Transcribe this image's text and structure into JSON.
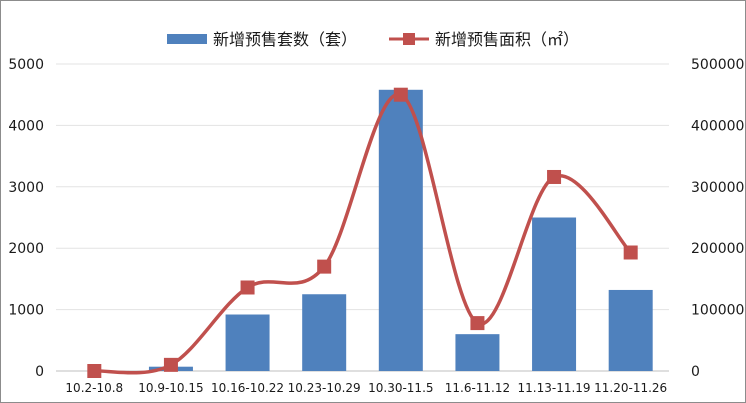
{
  "chart_data": {
    "type": "bar+line",
    "categories": [
      "10.2-10.8",
      "10.9-10.15",
      "10.16-10.22",
      "10.23-10.29",
      "10.30-11.5",
      "11.6-11.12",
      "11.13-11.19",
      "11.20-11.26"
    ],
    "series": [
      {
        "name": "新增预售套数（套）",
        "type": "bar",
        "axis": "left",
        "color": "#4f81bd",
        "values": [
          0,
          70,
          920,
          1250,
          4580,
          600,
          2500,
          1320
        ]
      },
      {
        "name": "新增预售面积（㎡）",
        "type": "line",
        "axis": "right",
        "color": "#c0504d",
        "smooth": true,
        "marker": "square",
        "values": [
          0,
          10000,
          136000,
          170000,
          450000,
          78000,
          316000,
          193000
        ]
      }
    ],
    "y_left": {
      "min": 0,
      "max": 5000,
      "ticks": [
        "0",
        "1000",
        "2000",
        "3000",
        "4000",
        "5000"
      ]
    },
    "y_right": {
      "min": 0,
      "max": 500000,
      "ticks": [
        "0",
        "100000",
        "200000",
        "300000",
        "400000",
        "500000"
      ]
    },
    "grid": true,
    "legend": "top-center"
  }
}
